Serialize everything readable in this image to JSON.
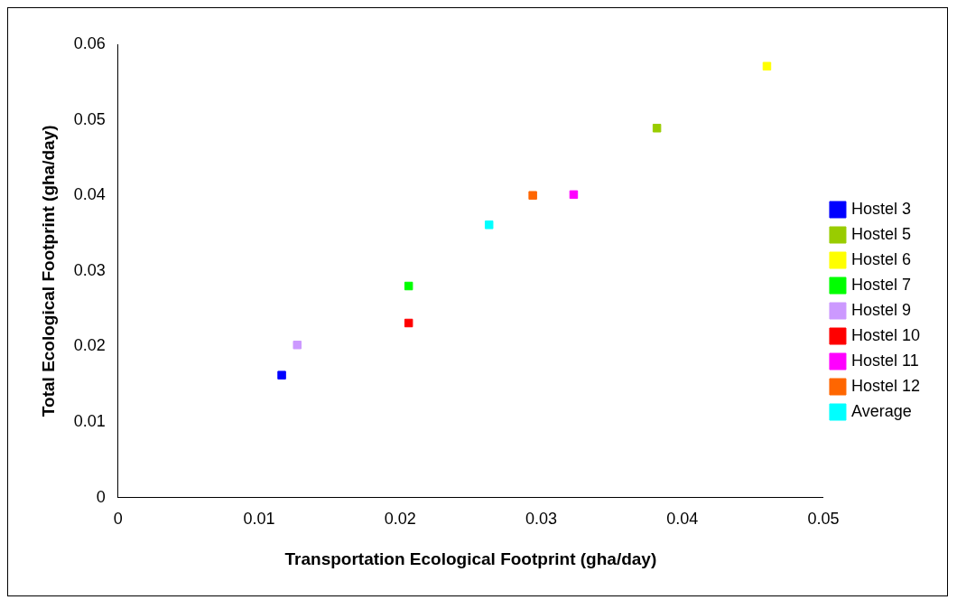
{
  "chart_data": {
    "type": "scatter",
    "xlabel": "Transportation Ecological Footprint (gha/day)",
    "ylabel": "Total Ecological Footprint (gha/day)",
    "xlim": [
      0,
      0.05
    ],
    "xticks": [
      0,
      0.01,
      0.02,
      0.03,
      0.04,
      0.05
    ],
    "ylim": [
      0,
      0.06
    ],
    "yticks": [
      0,
      0.01,
      0.02,
      0.03,
      0.04,
      0.05,
      0.06
    ],
    "grid": false,
    "legend": "right",
    "marker": "square",
    "series": [
      {
        "name": "Hostel 3",
        "color": "#0000ff",
        "x": [
          0.0116
        ],
        "values": [
          0.0162
        ]
      },
      {
        "name": "Hostel 5",
        "color": "#99cc00",
        "x": [
          0.0382
        ],
        "values": [
          0.0489
        ]
      },
      {
        "name": "Hostel 6",
        "color": "#ffff00",
        "x": [
          0.046
        ],
        "values": [
          0.0571
        ]
      },
      {
        "name": "Hostel 7",
        "color": "#00ff00",
        "x": [
          0.0206
        ],
        "values": [
          0.028
        ]
      },
      {
        "name": "Hostel 9",
        "color": "#cc99ff",
        "x": [
          0.0127
        ],
        "values": [
          0.0202
        ]
      },
      {
        "name": "Hostel 10",
        "color": "#ff0000",
        "x": [
          0.0206
        ],
        "values": [
          0.0231
        ]
      },
      {
        "name": "Hostel 11",
        "color": "#ff00ff",
        "x": [
          0.0323
        ],
        "values": [
          0.0401
        ]
      },
      {
        "name": "Hostel 12",
        "color": "#ff6600",
        "x": [
          0.0294
        ],
        "values": [
          0.04
        ]
      },
      {
        "name": "Average",
        "color": "#00ffff",
        "x": [
          0.0263
        ],
        "values": [
          0.0361
        ]
      }
    ]
  }
}
